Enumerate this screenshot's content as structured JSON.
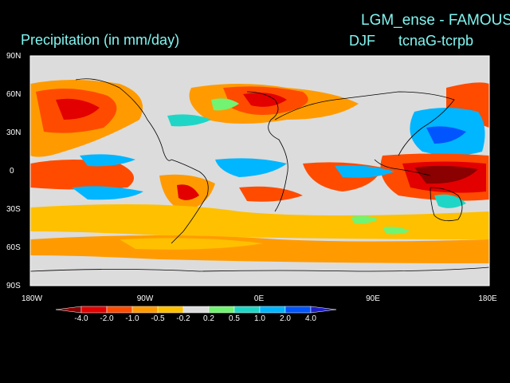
{
  "header": {
    "title_right": "LGM_ense - FAMOUS",
    "variable": "Precipitation (in mm/day)",
    "season": "DJF",
    "experiment": "tcnaG-tcrpb"
  },
  "axes": {
    "lat_labels": [
      "90N",
      "60N",
      "30N",
      "0",
      "30S",
      "60S",
      "90S"
    ],
    "lon_labels": [
      "180W",
      "90W",
      "0E",
      "90E",
      "180E"
    ]
  },
  "colorbar": {
    "tick_labels": [
      "-4.0",
      "-2.0",
      "-1.0",
      "-0.5",
      "-0.2",
      "0.2",
      "0.5",
      "1.0",
      "2.0",
      "4.0"
    ],
    "colors": [
      "#8b0000",
      "#e30000",
      "#ff4b00",
      "#ff9b00",
      "#ffc000",
      "#dcdcdc",
      "#72f372",
      "#1fd6c6",
      "#00b6ff",
      "#0055ff",
      "#2020c8"
    ]
  },
  "map": {
    "ocean_color": "#dcdcdc",
    "coastline_color": "#000000"
  }
}
